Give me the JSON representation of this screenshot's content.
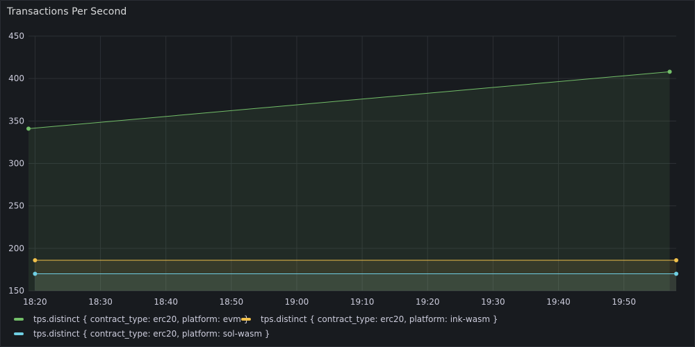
{
  "panel": {
    "title": "Transactions Per Second"
  },
  "chart_data": {
    "type": "line",
    "title": "Transactions Per Second",
    "xlabel": "",
    "ylabel": "",
    "ylim": [
      150,
      450
    ],
    "y_ticks": [
      "150",
      "200",
      "250",
      "300",
      "350",
      "400",
      "450"
    ],
    "x_ticks": [
      "18:20",
      "18:30",
      "18:40",
      "18:50",
      "19:00",
      "19:10",
      "19:20",
      "19:30",
      "19:40",
      "19:50"
    ],
    "xlim": [
      "18:19",
      "19:58"
    ],
    "grid": true,
    "legend_position": "bottom",
    "series": [
      {
        "name": "tps.distinct { contract_type: erc20, platform: evm }",
        "color": "#73bf69",
        "fill": true,
        "points": [
          {
            "x": "18:19",
            "y": 341
          },
          {
            "x": "19:57",
            "y": 408
          }
        ]
      },
      {
        "name": "tps.distinct { contract_type: erc20, platform: ink-wasm }",
        "color": "#f2c14b",
        "fill": true,
        "points": [
          {
            "x": "18:20",
            "y": 186
          },
          {
            "x": "19:58",
            "y": 186
          }
        ]
      },
      {
        "name": "tps.distinct { contract_type: erc20, platform: sol-wasm }",
        "color": "#6fcfe3",
        "fill": true,
        "points": [
          {
            "x": "18:20",
            "y": 170
          },
          {
            "x": "19:58",
            "y": 170
          }
        ]
      }
    ]
  },
  "legend": {
    "items": [
      {
        "label": "tps.distinct { contract_type: erc20, platform: evm }",
        "color": "#73bf69"
      },
      {
        "label": "tps.distinct { contract_type: erc20, platform: ink-wasm }",
        "color": "#f2c14b"
      },
      {
        "label": "tps.distinct { contract_type: erc20, platform: sol-wasm }",
        "color": "#6fcfe3"
      }
    ]
  }
}
